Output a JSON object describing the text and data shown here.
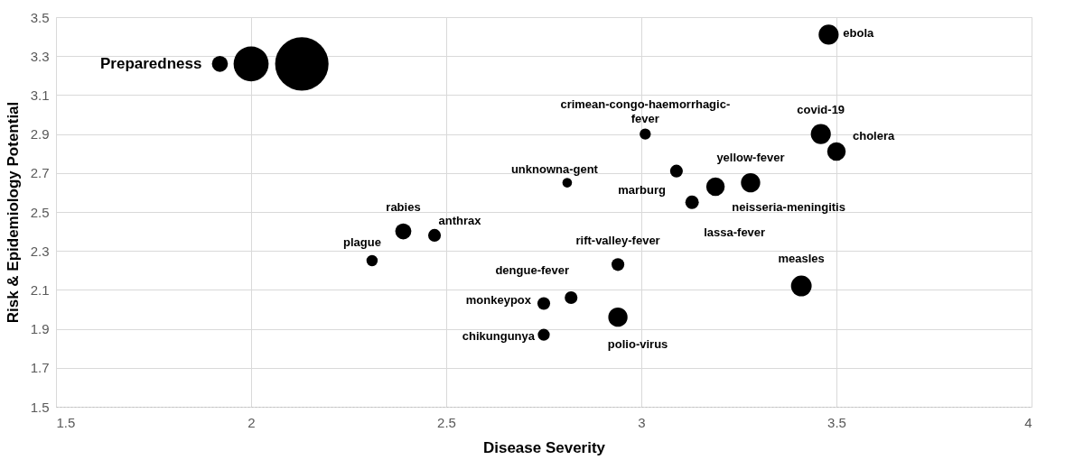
{
  "chart_data": {
    "type": "bubble",
    "xlabel": "Disease Severity",
    "ylabel": "Risk & Epidemiology Potential",
    "x": [
      1.92,
      2.0,
      2.13,
      3.48,
      3.46,
      3.5,
      3.01,
      2.81,
      3.09,
      3.19,
      3.28,
      3.13,
      2.39,
      2.47,
      2.31,
      2.94,
      2.82,
      2.75,
      2.75,
      2.94,
      3.41
    ],
    "values": [
      3.26,
      3.26,
      3.26,
      3.41,
      2.9,
      2.81,
      2.9,
      2.65,
      2.71,
      2.63,
      2.65,
      2.55,
      2.4,
      2.38,
      2.25,
      2.23,
      2.06,
      2.03,
      1.87,
      1.96,
      2.12
    ],
    "sizes": [
      0.09,
      0.43,
      1,
      0.14,
      0.14,
      0.12,
      0.044,
      0.032,
      0.057,
      0.12,
      0.13,
      0.064,
      0.09,
      0.057,
      0.044,
      0.057,
      0.057,
      0.057,
      0.05,
      0.13,
      0.15
    ],
    "color": "#000000",
    "xlim": [
      1.5,
      4
    ],
    "xticks": [
      1.5,
      2,
      2.5,
      3,
      3.5,
      4
    ],
    "ylim": [
      1.5,
      3.5
    ],
    "yticks": [
      1.5,
      1.7,
      1.9,
      2.1,
      2.3,
      2.5,
      2.7,
      2.9,
      3.1,
      3.3,
      3.5
    ],
    "grid": true,
    "annotations": [
      {
        "text": "Preparedness",
        "x": 1.92,
        "y": 3.26
      },
      {
        "text": "ebola",
        "x": 3.48,
        "y": 3.41
      },
      {
        "text": "covid-19",
        "x": 3.46,
        "y": 2.9
      },
      {
        "text": "cholera",
        "x": 3.5,
        "y": 2.81
      },
      {
        "text": "crimean-congo-haemorrhagic-fever",
        "x": 3.01,
        "y": 2.9
      },
      {
        "text": "unknowna-gent",
        "x": 2.81,
        "y": 2.65
      },
      {
        "text": "marburg",
        "x": 3.09,
        "y": 2.71
      },
      {
        "text": "neisseria-meningitis",
        "x": 3.19,
        "y": 2.63
      },
      {
        "text": "yellow-fever",
        "x": 3.28,
        "y": 2.65
      },
      {
        "text": "lassa-fever",
        "x": 3.13,
        "y": 2.55
      },
      {
        "text": "rabies",
        "x": 2.39,
        "y": 2.4
      },
      {
        "text": "anthrax",
        "x": 2.47,
        "y": 2.38
      },
      {
        "text": "plague",
        "x": 2.31,
        "y": 2.25
      },
      {
        "text": "rift-valley-fever",
        "x": 2.94,
        "y": 2.23
      },
      {
        "text": "dengue-fever",
        "x": 2.82,
        "y": 2.06
      },
      {
        "text": "monkeypox",
        "x": 2.75,
        "y": 2.03
      },
      {
        "text": "chikungunya",
        "x": 2.75,
        "y": 1.87
      },
      {
        "text": "polio-virus",
        "x": 2.94,
        "y": 1.96
      },
      {
        "text": "measles",
        "x": 3.41,
        "y": 2.12
      }
    ]
  }
}
